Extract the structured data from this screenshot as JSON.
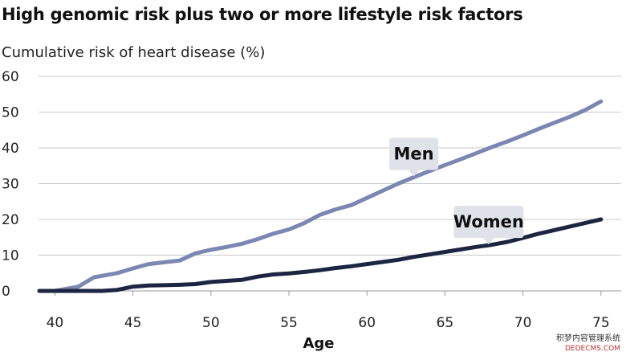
{
  "title": "High genomic risk plus two or more lifestyle risk factors",
  "subtitle": "Cumulative risk of heart disease (%)",
  "watermark": {
    "line1": "积梦内容管理系统",
    "line2": "DEDECMS.COM"
  },
  "chart_data": {
    "type": "line",
    "title": "High genomic risk plus two or more lifestyle risk factors",
    "ylabel": "Cumulative risk of heart disease (%)",
    "xlabel": "Age",
    "xlim": [
      39,
      76
    ],
    "ylim": [
      0,
      60
    ],
    "xticks": [
      40,
      45,
      50,
      55,
      60,
      65,
      70,
      75
    ],
    "yticks": [
      0,
      10,
      20,
      30,
      40,
      50,
      60
    ],
    "grid": "horizontal",
    "legend": "inline callouts",
    "colors": {
      "Men": "#7b87b3",
      "Women": "#1c2541"
    },
    "series": [
      {
        "name": "Men",
        "x": [
          39,
          40,
          41,
          41.5,
          42,
          42.5,
          43,
          44,
          45,
          46,
          47,
          48,
          49,
          50,
          51,
          52,
          53,
          54,
          55,
          56,
          57,
          58,
          59,
          60,
          61,
          62,
          63,
          64,
          65,
          66,
          67,
          68,
          69,
          70,
          71,
          72,
          73,
          74,
          75
        ],
        "y": [
          0,
          0,
          0.8,
          1.2,
          2.5,
          3.8,
          4.2,
          5,
          6.3,
          7.5,
          8,
          8.5,
          10.5,
          11.5,
          12.3,
          13.2,
          14.5,
          16,
          17.2,
          19,
          21.3,
          22.8,
          24,
          26,
          28,
          30,
          31.8,
          33.5,
          35.2,
          36.8,
          38.5,
          40.2,
          41.8,
          43.5,
          45.3,
          47,
          48.7,
          50.6,
          53
        ]
      },
      {
        "name": "Women",
        "x": [
          39,
          40,
          41,
          42,
          43,
          44,
          45,
          46,
          47,
          48,
          49,
          50,
          51,
          52,
          53,
          54,
          55,
          56,
          57,
          58,
          59,
          60,
          61,
          62,
          63,
          64,
          65,
          66,
          67,
          68,
          69,
          70,
          71,
          72,
          73,
          74,
          75
        ],
        "y": [
          0,
          0,
          0,
          0,
          0,
          0.3,
          1.2,
          1.5,
          1.6,
          1.7,
          1.9,
          2.5,
          2.8,
          3.1,
          4,
          4.6,
          4.9,
          5.3,
          5.8,
          6.4,
          6.9,
          7.5,
          8.1,
          8.7,
          9.5,
          10.2,
          10.9,
          11.6,
          12.3,
          12.9,
          13.7,
          14.8,
          16,
          17,
          18,
          19,
          20
        ]
      }
    ],
    "annotations": [
      {
        "text": "Men",
        "series": "Men",
        "x": 63
      },
      {
        "text": "Women",
        "series": "Women",
        "x": 67.8
      }
    ]
  }
}
